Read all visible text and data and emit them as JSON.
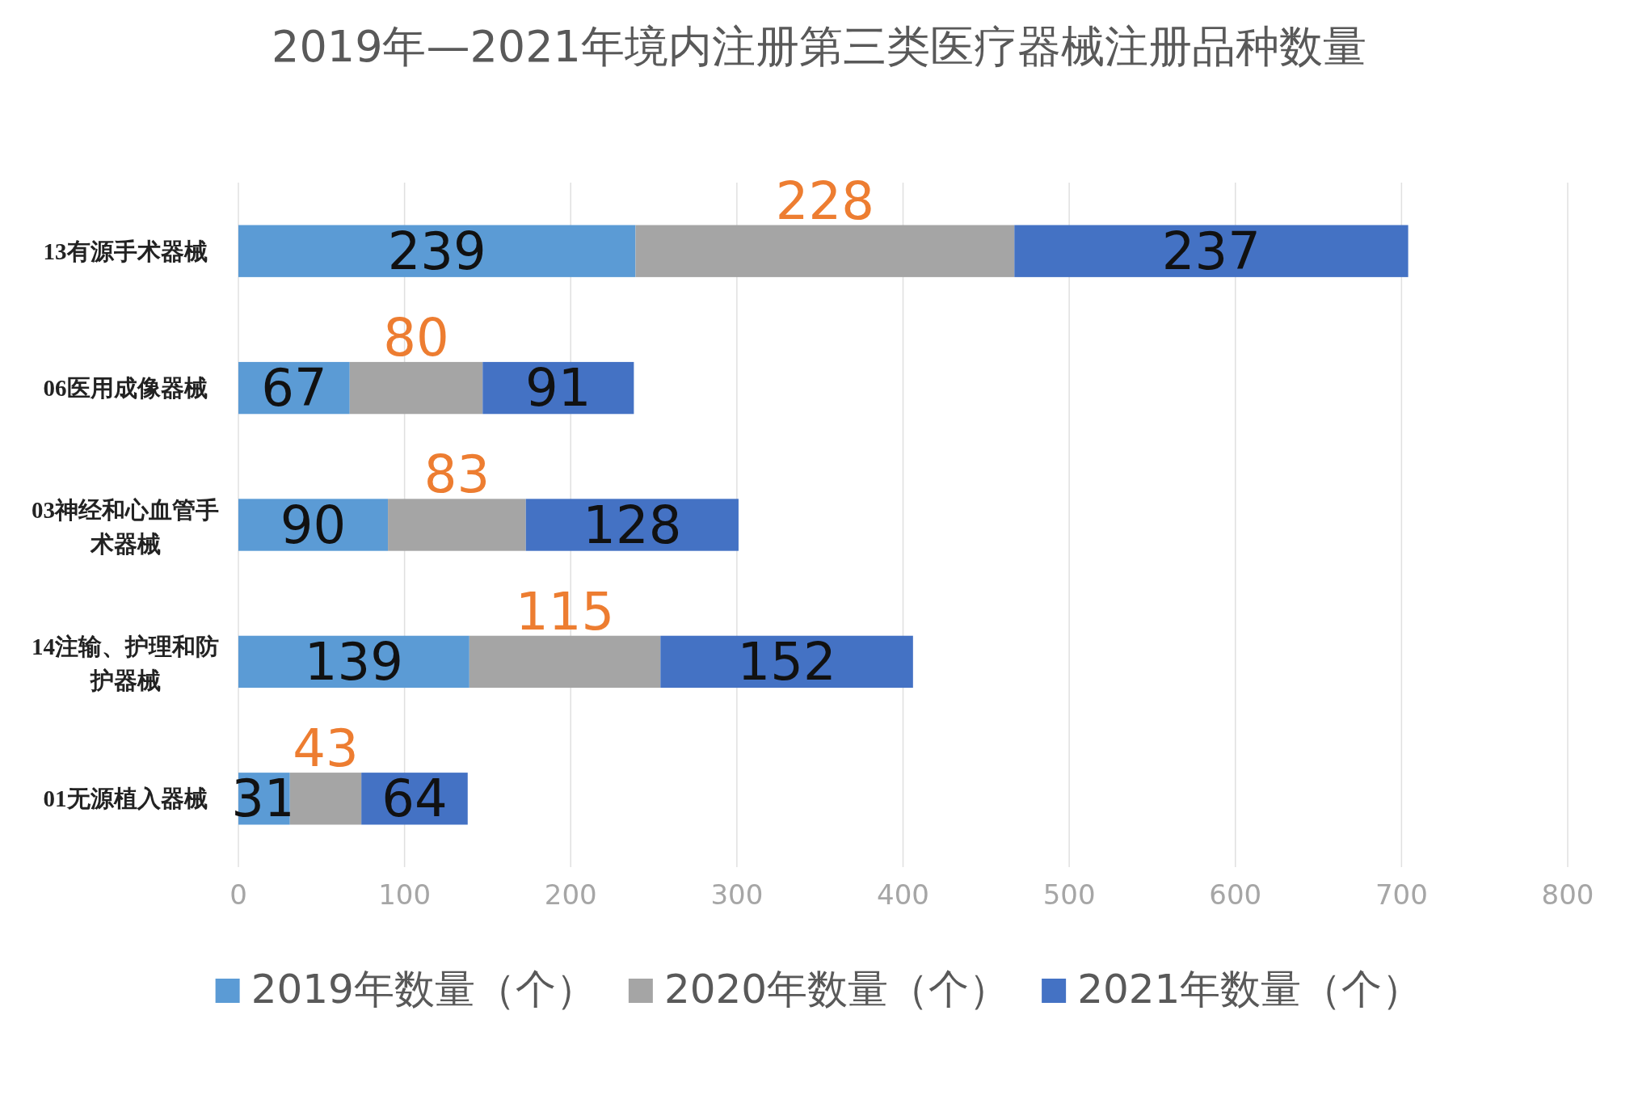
{
  "chart_data": {
    "type": "bar",
    "orientation": "horizontal",
    "stacked": true,
    "title": "2019年—2021年境内注册第三类医疗器械注册品种数量",
    "categories": [
      "13有源手术器械",
      "06医用成像器械",
      "03神经和心血管手术器械",
      "14注输、护理和防护器械",
      "01无源植入器械"
    ],
    "series": [
      {
        "name": "2019年数量（个）",
        "color": "#5b9bd5",
        "values": [
          239,
          67,
          90,
          139,
          31
        ]
      },
      {
        "name": "2020年数量（个）",
        "color": "#a5a5a5",
        "values": [
          228,
          80,
          83,
          115,
          43
        ]
      },
      {
        "name": "2021年数量（个）",
        "color": "#4472c4",
        "values": [
          237,
          91,
          128,
          152,
          64
        ]
      }
    ],
    "xlim": [
      0,
      800
    ],
    "xticks": [
      0,
      100,
      200,
      300,
      400,
      500,
      600,
      700,
      800
    ],
    "grid": "x",
    "legend": "bottom",
    "data_labels": true
  }
}
